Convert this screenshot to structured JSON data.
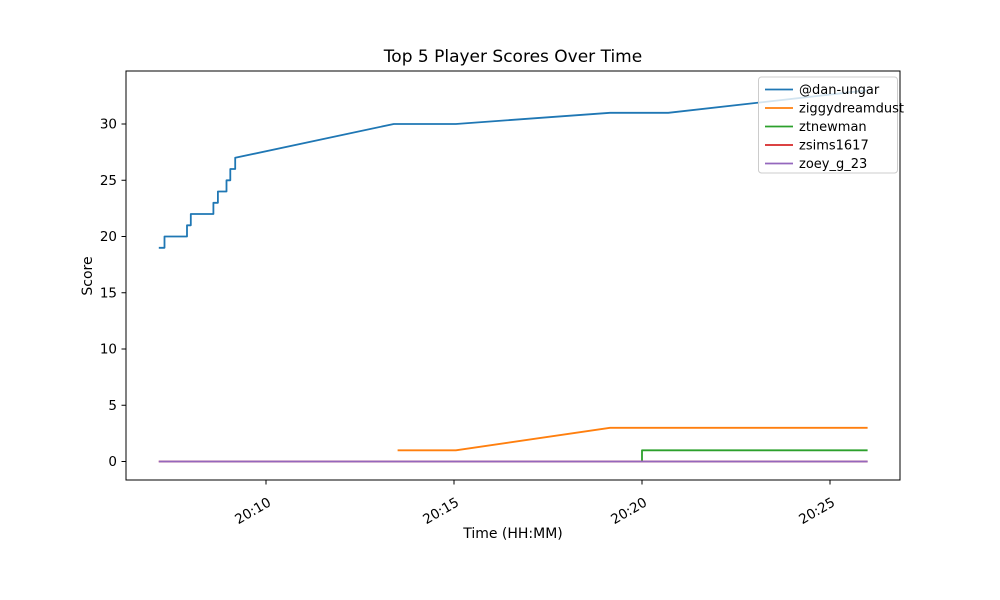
{
  "chart_data": {
    "type": "line",
    "title": "Top 5 Player Scores Over Time",
    "xlabel": "Time (HH:MM)",
    "ylabel": "Score",
    "x_unit": "minutes after 20:00",
    "xlim_minutes": [
      6.3,
      26.9
    ],
    "ylim": [
      -1.6,
      34.7
    ],
    "grid": false,
    "legend_position": "upper right",
    "x_ticks": [
      {
        "t": 10,
        "label": "20:10"
      },
      {
        "t": 15,
        "label": "20:15"
      },
      {
        "t": 20,
        "label": "20:20"
      },
      {
        "t": 25,
        "label": "20:25"
      }
    ],
    "y_ticks": [
      0,
      5,
      10,
      15,
      20,
      25,
      30
    ],
    "series": [
      {
        "name": "@dan-ungar",
        "color": "#1f77b4",
        "points": [
          [
            7.15,
            19
          ],
          [
            7.3,
            19
          ],
          [
            7.3,
            20
          ],
          [
            7.9,
            20
          ],
          [
            7.9,
            21
          ],
          [
            8.0,
            21
          ],
          [
            8.0,
            22
          ],
          [
            8.6,
            22
          ],
          [
            8.6,
            23
          ],
          [
            8.72,
            23
          ],
          [
            8.72,
            24
          ],
          [
            8.95,
            24
          ],
          [
            8.95,
            25
          ],
          [
            9.05,
            25
          ],
          [
            9.05,
            26
          ],
          [
            9.18,
            26
          ],
          [
            9.18,
            27
          ],
          [
            13.4,
            30
          ],
          [
            15.05,
            30
          ],
          [
            19.15,
            31
          ],
          [
            20.7,
            31
          ],
          [
            26.0,
            33
          ]
        ]
      },
      {
        "name": "ziggydreamdust",
        "color": "#ff7f0e",
        "points": [
          [
            13.5,
            1
          ],
          [
            15.05,
            1
          ],
          [
            19.15,
            3
          ],
          [
            26.0,
            3
          ]
        ]
      },
      {
        "name": "ztnewman",
        "color": "#2ca02c",
        "points": [
          [
            20.0,
            0
          ],
          [
            20.0,
            1
          ],
          [
            26.0,
            1
          ]
        ]
      },
      {
        "name": "zsims1617",
        "color": "#d62728",
        "points": [
          [
            7.15,
            0
          ],
          [
            26.0,
            0
          ]
        ]
      },
      {
        "name": "zoey_g_23",
        "color": "#9467bd",
        "points": [
          [
            7.15,
            0
          ],
          [
            26.0,
            0
          ]
        ]
      }
    ]
  }
}
